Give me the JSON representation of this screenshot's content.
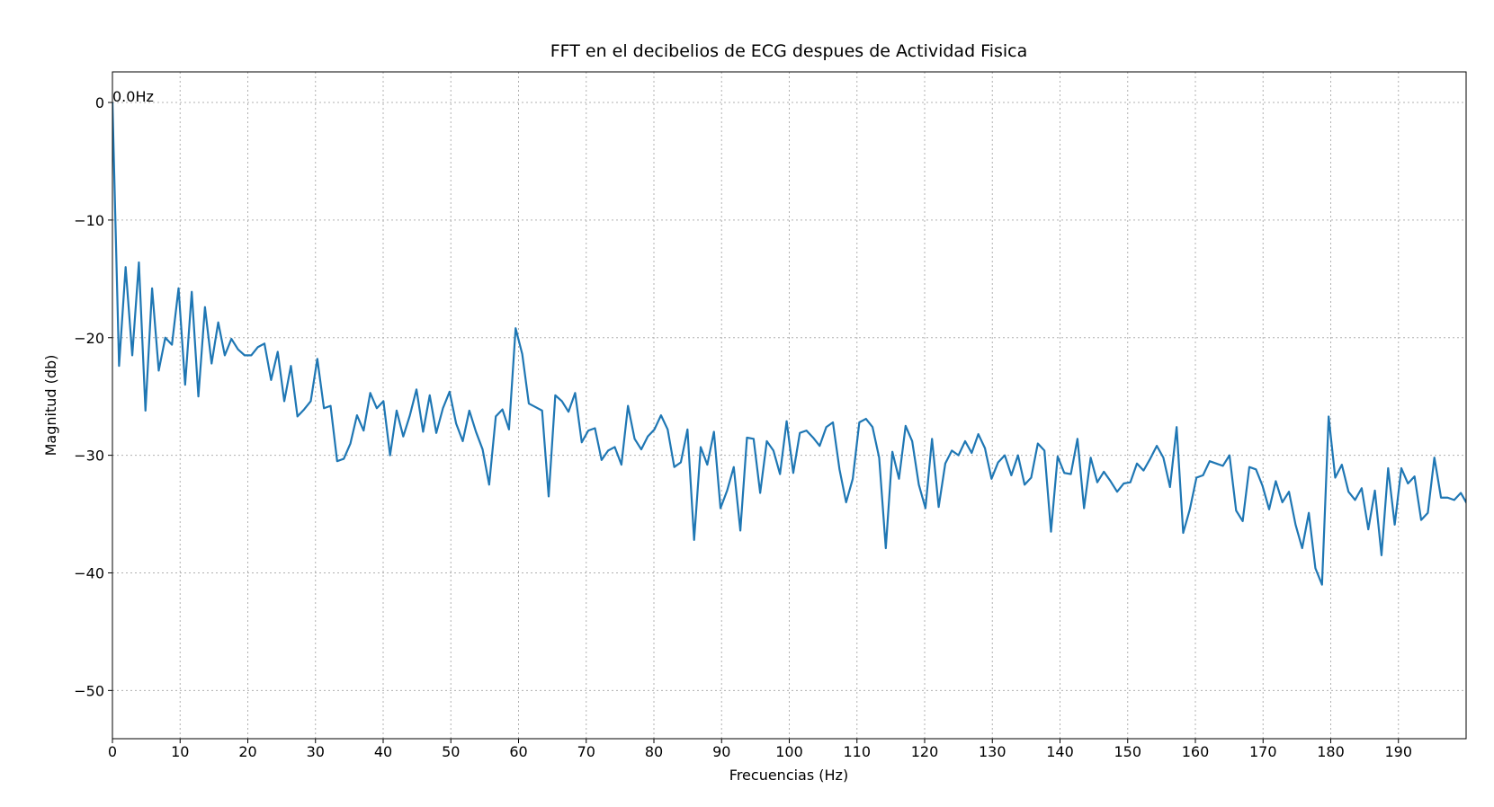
{
  "chart_data": {
    "type": "line",
    "title": "FFT en el decibelios de ECG despues de Actividad Fisica",
    "xlabel": "Frecuencias (Hz)",
    "ylabel": "Magnitud (db)",
    "annotation": {
      "text": "0.0Hz",
      "x": 0,
      "y": 0
    },
    "xlim": [
      0,
      200
    ],
    "ylim": [
      -54.1,
      2.6
    ],
    "xticks": [
      0,
      10,
      20,
      30,
      40,
      50,
      60,
      70,
      80,
      90,
      100,
      110,
      120,
      130,
      140,
      150,
      160,
      170,
      180,
      190
    ],
    "yticks": [
      {
        "value": -50,
        "label": "−50"
      },
      {
        "value": -40,
        "label": "−40"
      },
      {
        "value": -30,
        "label": "−30"
      },
      {
        "value": -20,
        "label": "−20"
      },
      {
        "value": -10,
        "label": "−10"
      },
      0
    ],
    "grid": true,
    "x": [
      0,
      0.98,
      1.95,
      2.93,
      3.91,
      4.88,
      5.86,
      6.84,
      7.81,
      8.79,
      9.77,
      10.74,
      11.72,
      12.7,
      13.67,
      14.65,
      15.63,
      16.6,
      17.58,
      18.56,
      19.53,
      20.51,
      21.49,
      22.46,
      23.44,
      24.42,
      25.39,
      26.37,
      27.34,
      28.32,
      29.3,
      30.27,
      31.25,
      32.23,
      33.2,
      34.18,
      35.16,
      36.13,
      37.11,
      38.09,
      39.06,
      40.04,
      41.02,
      41.99,
      42.97,
      43.95,
      44.92,
      45.9,
      46.88,
      47.85,
      48.83,
      49.81,
      50.78,
      51.76,
      52.73,
      53.71,
      54.69,
      55.66,
      56.64,
      57.62,
      58.59,
      59.57,
      60.55,
      61.52,
      62.5,
      63.48,
      64.45,
      65.43,
      66.41,
      67.38,
      68.36,
      69.34,
      70.31,
      71.29,
      72.27,
      73.24,
      74.22,
      75.2,
      76.17,
      77.15,
      78.13,
      79.1,
      80.08,
      81.05,
      82.03,
      83.01,
      83.98,
      84.96,
      85.94,
      86.91,
      87.89,
      88.87,
      89.84,
      90.82,
      91.8,
      92.77,
      93.75,
      94.73,
      95.7,
      96.68,
      97.66,
      98.63,
      99.61,
      100.59,
      101.56,
      102.54,
      103.52,
      104.49,
      105.47,
      106.45,
      107.42,
      108.4,
      109.38,
      110.35,
      111.33,
      112.3,
      113.28,
      114.26,
      115.23,
      116.21,
      117.19,
      118.16,
      119.14,
      120.12,
      121.09,
      122.07,
      123.05,
      124.02,
      125,
      125.98,
      126.95,
      127.93,
      128.91,
      129.88,
      130.86,
      131.84,
      132.81,
      133.79,
      134.77,
      135.74,
      136.72,
      137.7,
      138.67,
      139.65,
      140.63,
      141.6,
      142.58,
      143.55,
      144.53,
      145.51,
      146.48,
      147.46,
      148.44,
      149.41,
      150.39,
      151.37,
      152.34,
      153.32,
      154.3,
      155.27,
      156.25,
      157.23,
      158.2,
      159.18,
      160.16,
      161.13,
      162.11,
      163.09,
      164.06,
      165.04,
      166.02,
      166.99,
      167.97,
      168.95,
      169.92,
      170.9,
      171.88,
      172.85,
      173.83,
      174.8,
      175.78,
      176.76,
      177.73,
      178.71,
      179.69,
      180.66,
      181.64,
      182.62,
      183.59,
      184.57,
      185.55,
      186.52,
      187.5,
      188.48,
      189.45,
      190.43,
      191.41,
      192.38,
      193.36,
      194.34,
      195.31,
      196.29,
      197.27,
      198.24,
      199.22,
      200.2
    ],
    "series": [
      {
        "color": "#1f77b4",
        "values": [
          0,
          -22.4,
          -14,
          -21.5,
          -13.6,
          -26.2,
          -15.8,
          -22.8,
          -20,
          -20.6,
          -15.8,
          -24,
          -16.1,
          -25,
          -17.4,
          -22.2,
          -18.7,
          -21.5,
          -20.1,
          -21,
          -21.5,
          -21.5,
          -20.8,
          -20.5,
          -23.6,
          -21.2,
          -25.4,
          -22.4,
          -26.7,
          -26.1,
          -25.4,
          -21.8,
          -26,
          -25.8,
          -30.5,
          -30.3,
          -29,
          -26.6,
          -27.9,
          -24.7,
          -26,
          -25.4,
          -30,
          -26.2,
          -28.4,
          -26.6,
          -24.4,
          -28,
          -24.9,
          -28.1,
          -26,
          -24.6,
          -27.3,
          -28.8,
          -26.2,
          -28,
          -29.5,
          -32.5,
          -26.7,
          -26.1,
          -27.8,
          -19.2,
          -21.4,
          -25.6,
          -25.9,
          -26.2,
          -33.5,
          -24.9,
          -25.4,
          -26.3,
          -24.7,
          -28.9,
          -27.9,
          -27.7,
          -30.4,
          -29.6,
          -29.3,
          -30.8,
          -25.8,
          -28.6,
          -29.5,
          -28.4,
          -27.8,
          -26.6,
          -27.8,
          -31,
          -30.6,
          -27.8,
          -37.2,
          -29.3,
          -30.8,
          -28,
          -34.5,
          -33,
          -31,
          -36.4,
          -28.5,
          -28.6,
          -33.2,
          -28.8,
          -29.6,
          -31.6,
          -27.1,
          -31.5,
          -28.1,
          -27.9,
          -28.5,
          -29.2,
          -27.6,
          -27.2,
          -31.2,
          -34,
          -32,
          -27.2,
          -26.9,
          -27.6,
          -30.2,
          -37.9,
          -29.7,
          -32,
          -27.5,
          -28.8,
          -32.5,
          -34.5,
          -28.6,
          -34.4,
          -30.7,
          -29.6,
          -30,
          -28.8,
          -29.8,
          -28.2,
          -29.4,
          -32,
          -30.6,
          -30,
          -31.7,
          -30,
          -32.5,
          -31.9,
          -29,
          -29.6,
          -36.5,
          -30.1,
          -31.5,
          -31.6,
          -28.6,
          -34.5,
          -30.2,
          -32.3,
          -31.4,
          -32.2,
          -33.1,
          -32.4,
          -32.3,
          -30.7,
          -31.3,
          -30.3,
          -29.2,
          -30.2,
          -32.7,
          -27.6,
          -36.6,
          -34.6,
          -31.9,
          -31.7,
          -30.5,
          -30.7,
          -30.9,
          -30,
          -34.7,
          -35.6,
          -31,
          -31.2,
          -32.6,
          -34.6,
          -32.2,
          -34,
          -33.1,
          -35.9,
          -37.9,
          -34.9,
          -39.6,
          -41,
          -26.7,
          -31.9,
          -30.8,
          -33.1,
          -33.8,
          -32.8,
          -36.3,
          -33,
          -38.5,
          -31.1,
          -35.9,
          -31.1,
          -32.4,
          -31.8,
          -35.5,
          -34.9,
          -30.2,
          -33.6,
          -33.6,
          -33.8,
          -33.2,
          -34.2
        ]
      }
    ]
  }
}
